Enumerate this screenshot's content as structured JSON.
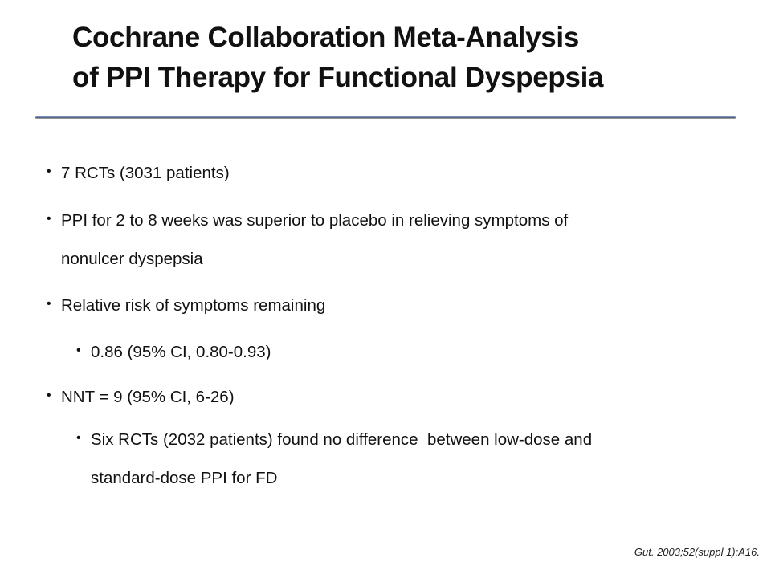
{
  "slide": {
    "title_lines": [
      "Cochrane Collaboration Meta-Analysis",
      "of PPI Therapy for Functional Dyspepsia"
    ],
    "bullets": [
      {
        "level": 1,
        "lines": [
          "7 RCTs (3031 patients)"
        ]
      },
      {
        "level": 1,
        "lines": [
          "PPI for 2 to 8 weeks was superior to placebo in relieving symptoms of",
          "nonulcer dyspepsia"
        ]
      },
      {
        "level": 1,
        "lines": [
          "Relative risk of symptoms remaining"
        ]
      },
      {
        "level": 2,
        "lines": [
          "0.86 (95% CI, 0.80-0.93)"
        ]
      },
      {
        "level": 1,
        "lines": [
          "NNT = 9 (95% CI, 6-26)"
        ]
      },
      {
        "level": 2,
        "lines": [
          "Six RCTs (2032 patients) found no difference  between low-dose and",
          "standard-dose PPI for FD"
        ]
      }
    ],
    "citation": "Gut. 2003;52(suppl 1):A16.",
    "rule_color": "#3e5587"
  }
}
